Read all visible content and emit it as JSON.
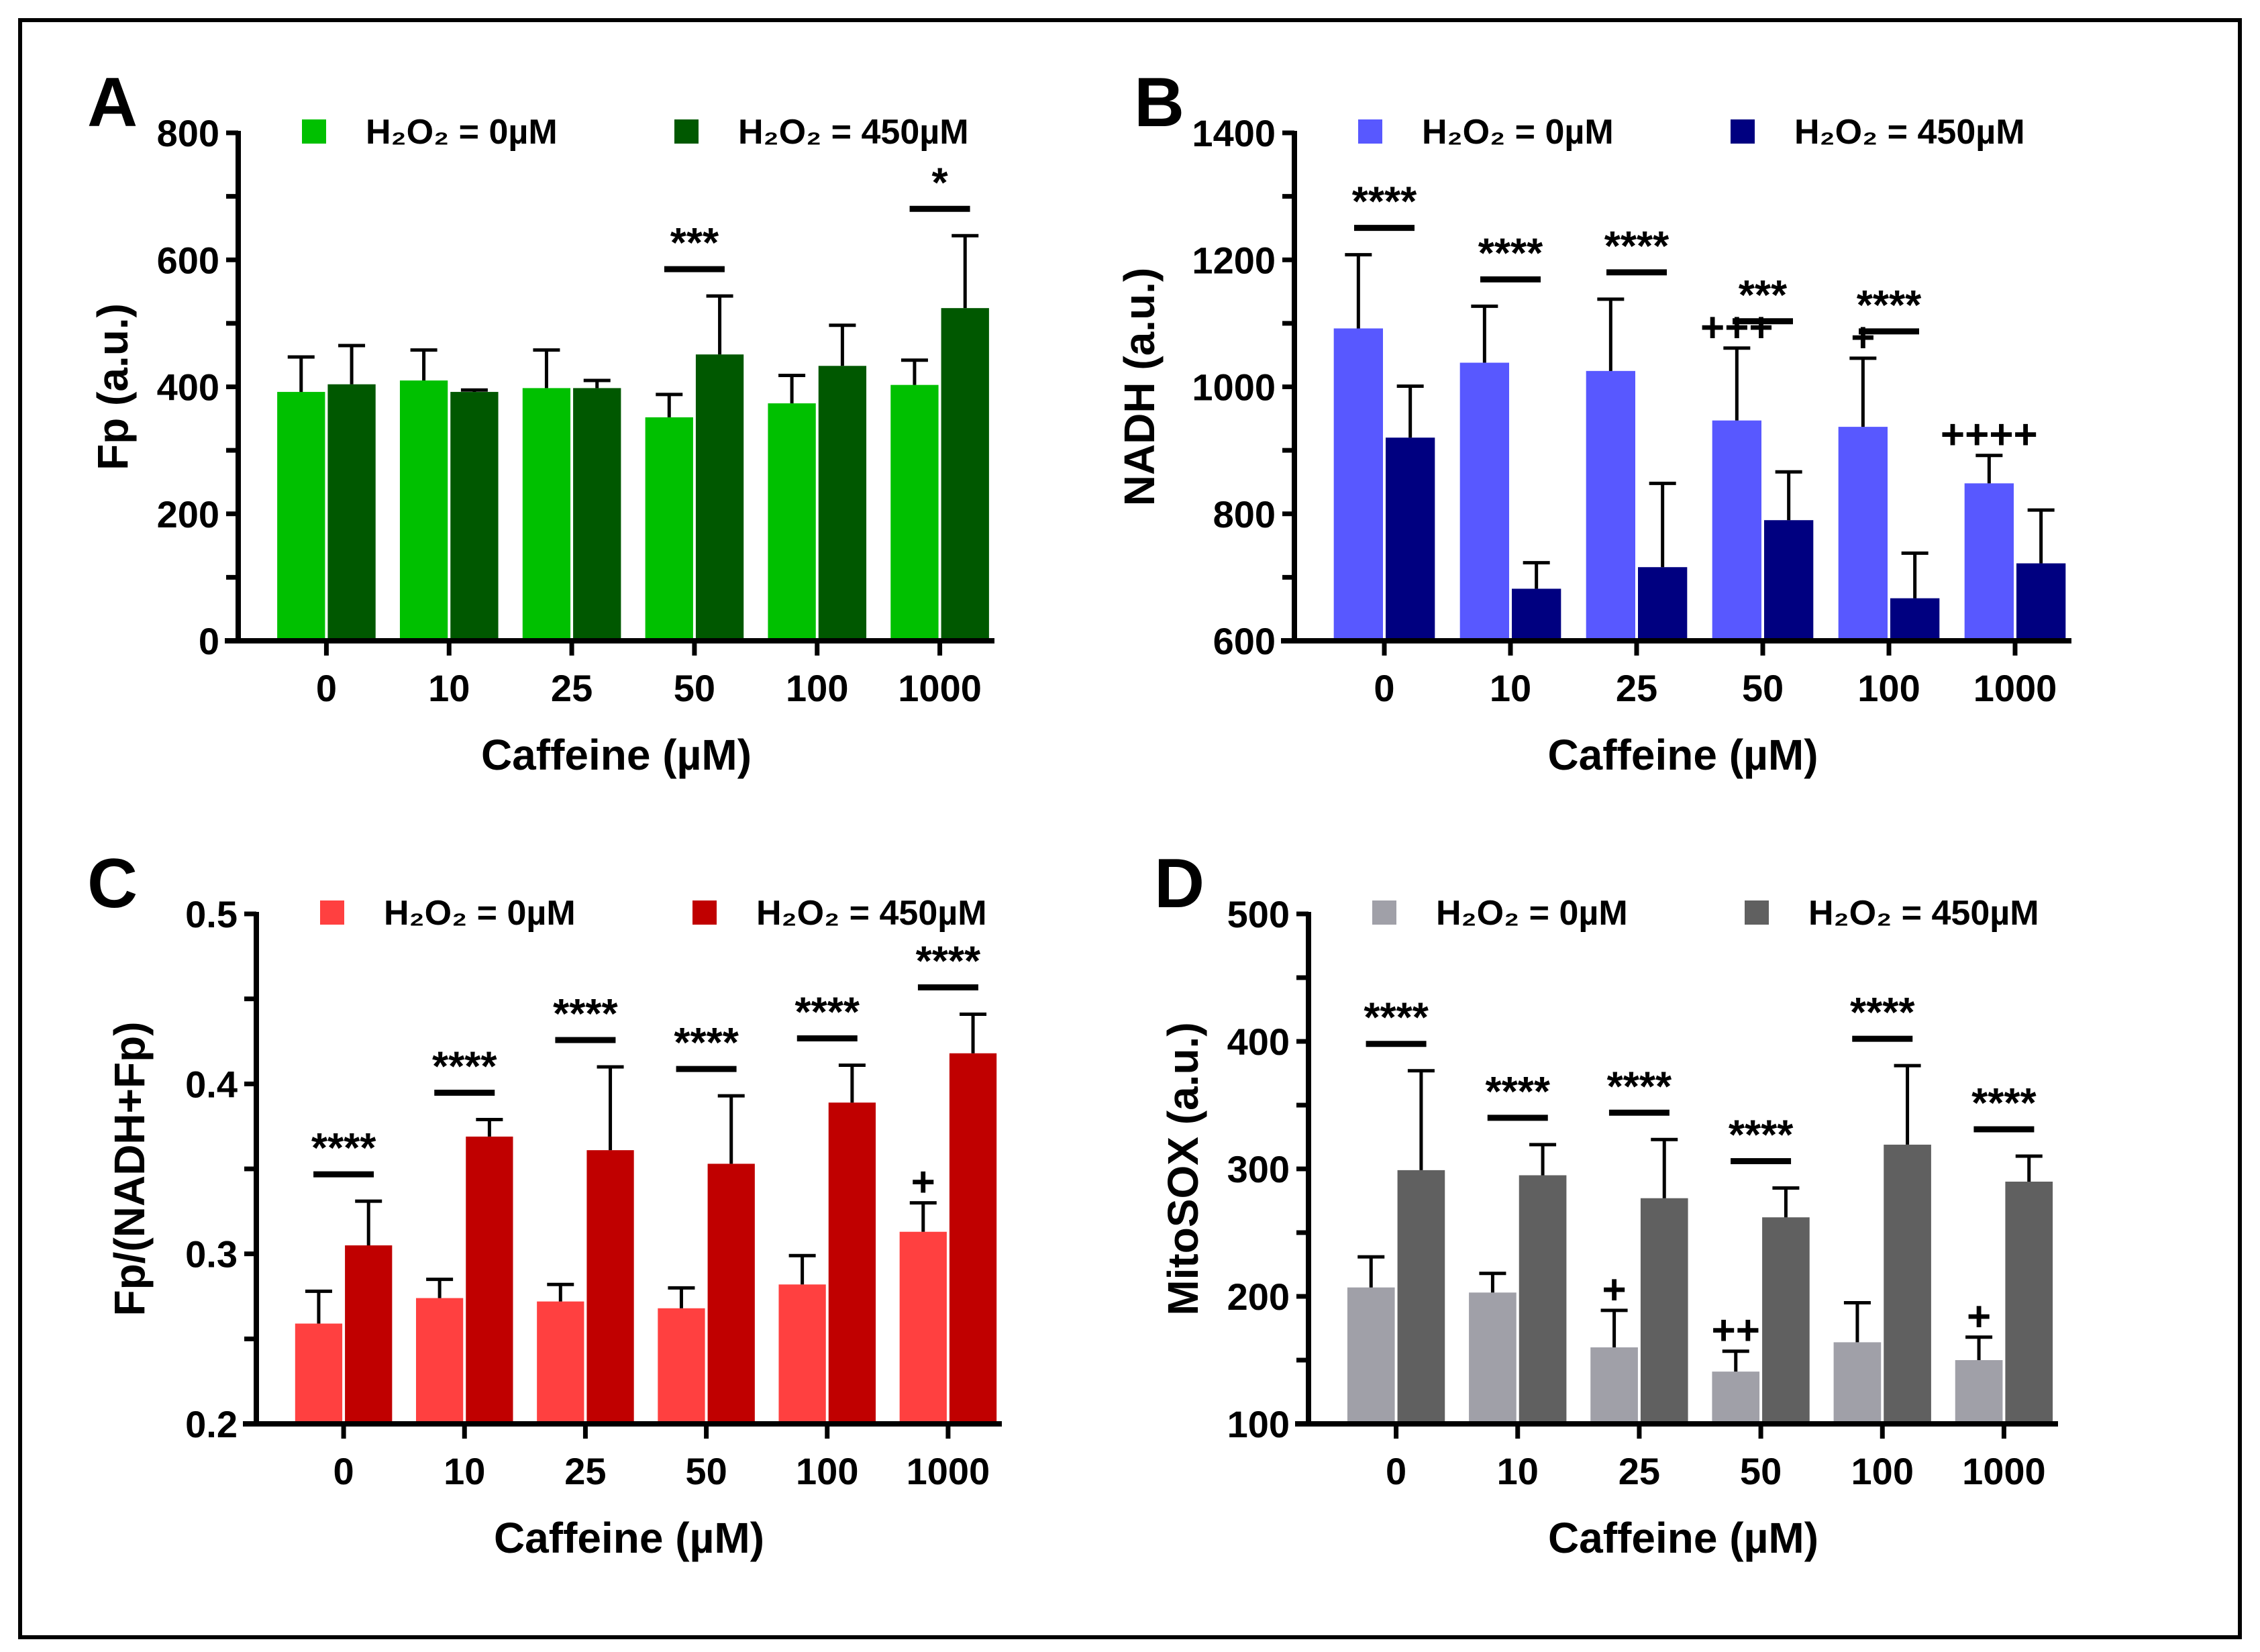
{
  "chart_data": [
    {
      "panel": "A",
      "type": "bar",
      "title": "",
      "xlabel": "Caffeine (µM)",
      "ylabel": "Fp (a.u.)",
      "categories": [
        "0",
        "10",
        "25",
        "50",
        "100",
        "1000"
      ],
      "ylim": [
        0,
        800
      ],
      "yticks": [
        0,
        200,
        400,
        600,
        800
      ],
      "yminor": 100,
      "legend_position": "top",
      "series": [
        {
          "name": "H₂O₂ = 0µM",
          "color": "#00c000",
          "values": [
            392,
            410,
            398,
            352,
            374,
            403
          ],
          "err_upper": [
            447,
            458,
            458,
            388,
            418,
            442
          ]
        },
        {
          "name": "H₂O₂ = 450µM",
          "color": "#005800",
          "values": [
            404,
            392,
            398,
            451,
            433,
            524
          ],
          "err_upper": [
            465,
            395,
            410,
            543,
            497,
            638
          ]
        }
      ],
      "significance": [
        "",
        "",
        "",
        "***",
        "",
        "*"
      ],
      "vs_control": [
        "",
        "",
        "",
        "",
        "",
        ""
      ]
    },
    {
      "panel": "B",
      "type": "bar",
      "title": "",
      "xlabel": "Caffeine (µM)",
      "ylabel": "NADH (a.u.)",
      "categories": [
        "0",
        "10",
        "25",
        "50",
        "100",
        "1000"
      ],
      "ylim": [
        600,
        1400
      ],
      "yticks": [
        600,
        800,
        1000,
        1200,
        1400
      ],
      "yminor": 100,
      "legend_position": "top",
      "series": [
        {
          "name": "H₂O₂ = 0µM",
          "color": "#5858ff",
          "values": [
            1092,
            1038,
            1025,
            947,
            937,
            848
          ],
          "err_upper": [
            1208,
            1127,
            1138,
            1061,
            1045,
            892
          ]
        },
        {
          "name": "H₂O₂ = 450µM",
          "color": "#000080",
          "values": [
            920,
            682,
            716,
            790,
            667,
            722
          ],
          "err_upper": [
            1001,
            723,
            848,
            866,
            738,
            806
          ]
        }
      ],
      "significance": [
        "****",
        "****",
        "****",
        "***",
        "****",
        ""
      ],
      "vs_control": [
        "",
        "",
        "",
        "+++",
        "+",
        "++++"
      ]
    },
    {
      "panel": "C",
      "type": "bar",
      "title": "",
      "xlabel": "Caffeine (µM)",
      "ylabel": "Fp/(NADH+Fp)",
      "categories": [
        "0",
        "10",
        "25",
        "50",
        "100",
        "1000"
      ],
      "ylim": [
        0.2,
        0.5
      ],
      "yticks": [
        0.2,
        0.3,
        0.4,
        0.5
      ],
      "yminor": 0.05,
      "legend_position": "top",
      "series": [
        {
          "name": "H₂O₂ = 0µM",
          "color": "#ff4040",
          "values": [
            0.259,
            0.274,
            0.272,
            0.268,
            0.282,
            0.313
          ],
          "err_upper": [
            0.278,
            0.285,
            0.282,
            0.28,
            0.299,
            0.33
          ]
        },
        {
          "name": "H₂O₂ = 450µM",
          "color": "#c00000",
          "values": [
            0.305,
            0.369,
            0.361,
            0.353,
            0.389,
            0.418
          ],
          "err_upper": [
            0.331,
            0.379,
            0.41,
            0.393,
            0.411,
            0.441
          ]
        }
      ],
      "significance": [
        "****",
        "****",
        "****",
        "****",
        "****",
        "****"
      ],
      "vs_control": [
        "",
        "",
        "",
        "",
        "",
        "+"
      ]
    },
    {
      "panel": "D",
      "type": "bar",
      "title": "",
      "xlabel": "Caffeine (µM)",
      "ylabel": "MitoSOX (a.u.)",
      "categories": [
        "0",
        "10",
        "25",
        "50",
        "100",
        "1000"
      ],
      "ylim": [
        100,
        500
      ],
      "yticks": [
        100,
        200,
        300,
        400,
        500
      ],
      "yminor": 50,
      "legend_position": "top",
      "series": [
        {
          "name": "H₂O₂ = 0µM",
          "color": "#a0a0a8",
          "values": [
            207,
            203,
            160,
            141,
            164,
            150
          ],
          "err_upper": [
            231,
            218,
            189,
            157,
            195,
            168
          ]
        },
        {
          "name": "H₂O₂ = 450µM",
          "color": "#606060",
          "values": [
            299,
            295,
            277,
            262,
            319,
            290
          ],
          "err_upper": [
            377,
            319,
            323,
            285,
            381,
            310
          ]
        }
      ],
      "significance": [
        "****",
        "****",
        "****",
        "****",
        "****",
        "****"
      ],
      "vs_control": [
        "",
        "",
        "+",
        "++",
        "",
        "+"
      ]
    }
  ]
}
